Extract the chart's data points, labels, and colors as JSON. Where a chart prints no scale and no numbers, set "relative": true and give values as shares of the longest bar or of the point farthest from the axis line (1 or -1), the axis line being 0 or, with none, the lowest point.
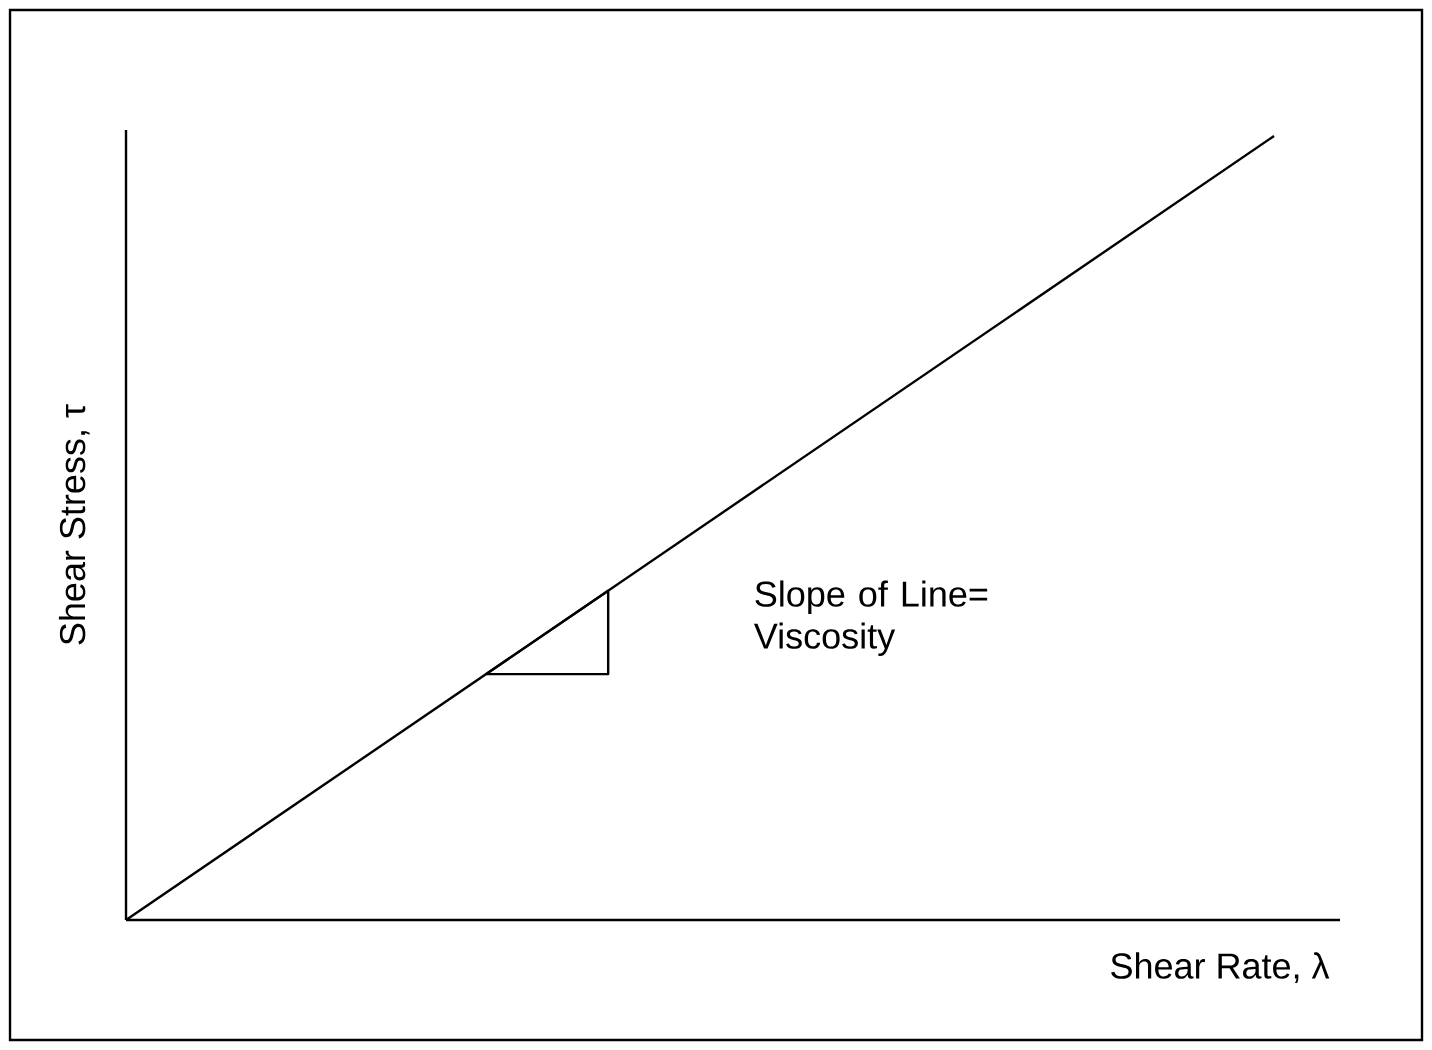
{
  "chart_data": {
    "type": "line",
    "relative": true,
    "xlabel": "Shear Rate, λ",
    "ylabel": "Shear Stress, τ",
    "categories": [
      null,
      null
    ],
    "series": [
      {
        "color": "#000000",
        "values": [
          0,
          1
        ]
      }
    ],
    "annotations": [
      "Slope of Line= Viscosity"
    ]
  }
}
